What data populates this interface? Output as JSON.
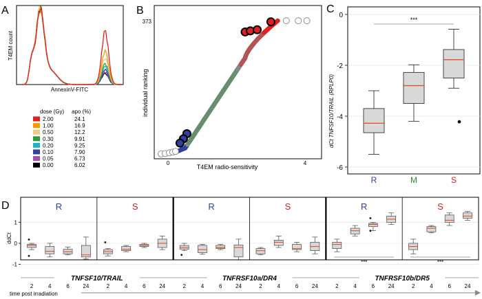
{
  "panel_labels": {
    "a": "A",
    "b": "B",
    "c": "C",
    "d": "D"
  },
  "colors": {
    "red": "#e02020",
    "orange": "#f59a00",
    "tan": "#f0c888",
    "green": "#2a9a3a",
    "cyan": "#20b4c0",
    "blue": "#3040a0",
    "purple": "#a050b0",
    "black": "#000000",
    "R": "#2e3e9a",
    "M": "#2a8a2a",
    "S": "#d42020",
    "median": "#e0502a",
    "box": "#d9d9d9",
    "grey": "#999999"
  },
  "chart_data": [
    {
      "id": "A",
      "type": "line",
      "title": "",
      "xlabel": "AnnexinV-FITC",
      "ylabel": "T4EM count",
      "legend": {
        "headers": [
          "dose (Gy)",
          "apo (%)"
        ],
        "rows": [
          {
            "dose": "2.00",
            "apo": "24.1",
            "color": "#e02020"
          },
          {
            "dose": "1.00",
            "apo": "16.9",
            "color": "#f59a00"
          },
          {
            "dose": "0.50",
            "apo": "12.2",
            "color": "#f0c888"
          },
          {
            "dose": "0.30",
            "apo": "9.91",
            "color": "#2a9a3a"
          },
          {
            "dose": "0.20",
            "apo": "9.25",
            "color": "#20b4c0"
          },
          {
            "dose": "0.10",
            "apo": "7.90",
            "color": "#3040a0"
          },
          {
            "dose": "0.05",
            "apo": "6.73",
            "color": "#a050b0"
          },
          {
            "dose": "0.00",
            "apo": "6.02",
            "color": "#000000"
          }
        ]
      },
      "second_peak_height": [
        0.72,
        0.45,
        0.35,
        0.28,
        0.24,
        0.2,
        0.17,
        0.15
      ]
    },
    {
      "id": "B",
      "type": "scatter",
      "xlabel": "T4EM radio-sensitivity",
      "ylabel": "individual ranking",
      "xticks": [
        "0",
        "4"
      ],
      "yticks": [
        "373"
      ],
      "xlim": [
        -0.3,
        4.5
      ],
      "ylim": [
        0,
        400
      ]
    },
    {
      "id": "C",
      "type": "box",
      "ylabel": "dCt TNFSF10/TRAIL (RPLP0)",
      "categories": [
        "R",
        "M",
        "S"
      ],
      "yticks": [
        "0",
        "-2",
        "-4",
        "-6"
      ],
      "ylim": [
        -6.3,
        0.3
      ],
      "boxes": [
        {
          "min": -5.5,
          "q1": -4.65,
          "median": -4.28,
          "q3": -3.7,
          "max": -3.0,
          "outliers": []
        },
        {
          "min": -4.2,
          "q1": -3.5,
          "median": -2.8,
          "q3": -2.28,
          "max": -1.98,
          "outliers": []
        },
        {
          "min": -2.9,
          "q1": -2.5,
          "median": -1.78,
          "q3": -1.38,
          "max": -0.58,
          "outliers": [
            -4.22
          ]
        }
      ],
      "significance": "***"
    },
    {
      "id": "D",
      "type": "box",
      "ylabel": "ddCt",
      "yticks": [
        "1",
        "0",
        "-1"
      ],
      "ylim": [
        -1.4,
        1.85
      ],
      "xticks": [
        "2",
        "4",
        "6",
        "24"
      ],
      "xlabel": "time post irradiation",
      "groups": [
        {
          "gene": "TNFSF10/TRAIL",
          "panels": [
            {
              "label": "R",
              "boxes": [
                {
                  "min": -0.3,
                  "q1": -0.2,
                  "median": -0.1,
                  "q3": -0.05,
                  "max": 0.0,
                  "outliers": [
                    0.18,
                    -0.6
                  ]
                },
                {
                  "min": -0.65,
                  "q1": -0.5,
                  "median": -0.38,
                  "q3": -0.15,
                  "max": -0.0,
                  "outliers": []
                },
                {
                  "min": -0.55,
                  "q1": -0.5,
                  "median": -0.4,
                  "q3": -0.28,
                  "max": -0.18,
                  "outliers": []
                },
                {
                  "min": -0.75,
                  "q1": -0.65,
                  "median": -0.55,
                  "q3": -0.1,
                  "max": 0.3,
                  "outliers": []
                }
              ]
            },
            {
              "label": "S",
              "boxes": [
                {
                  "min": -0.6,
                  "q1": -0.5,
                  "median": -0.4,
                  "q3": -0.3,
                  "max": -0.25,
                  "outliers": [
                    0.05
                  ]
                },
                {
                  "min": -0.4,
                  "q1": -0.35,
                  "median": -0.28,
                  "q3": -0.15,
                  "max": -0.1,
                  "outliers": []
                },
                {
                  "min": -0.2,
                  "q1": -0.15,
                  "median": -0.1,
                  "q3": -0.05,
                  "max": 0.0,
                  "outliers": []
                },
                {
                  "min": -0.3,
                  "q1": -0.2,
                  "median": 0.0,
                  "q3": 0.2,
                  "max": 0.35,
                  "outliers": []
                }
              ]
            }
          ]
        },
        {
          "gene": "TNFRSF10a/DR4",
          "panels": [
            {
              "label": "R",
              "boxes": [
                {
                  "min": -0.35,
                  "q1": -0.28,
                  "median": -0.2,
                  "q3": -0.1,
                  "max": 0.0,
                  "outliers": [
                    -0.55
                  ]
                },
                {
                  "min": -0.52,
                  "q1": -0.45,
                  "median": -0.3,
                  "q3": -0.1,
                  "max": -0.05,
                  "outliers": []
                },
                {
                  "min": -0.3,
                  "q1": -0.25,
                  "median": -0.2,
                  "q3": -0.1,
                  "max": -0.05,
                  "outliers": []
                },
                {
                  "min": -0.8,
                  "q1": -0.65,
                  "median": -0.2,
                  "q3": -0.08,
                  "max": 0.2,
                  "outliers": []
                }
              ]
            },
            {
              "label": "S",
              "boxes": [
                {
                  "min": -0.55,
                  "q1": -0.5,
                  "median": -0.35,
                  "q3": -0.25,
                  "max": -0.2,
                  "outliers": []
                },
                {
                  "min": -0.2,
                  "q1": -0.1,
                  "median": 0.05,
                  "q3": 0.15,
                  "max": 0.35,
                  "outliers": []
                },
                {
                  "min": -0.4,
                  "q1": -0.3,
                  "median": -0.25,
                  "q3": -0.05,
                  "max": 0.05,
                  "outliers": []
                },
                {
                  "min": -0.5,
                  "q1": -0.35,
                  "median": -0.15,
                  "q3": 0.05,
                  "max": 0.3,
                  "outliers": []
                }
              ]
            }
          ]
        },
        {
          "gene": "TNFRSF10b/DR5",
          "panels": [
            {
              "label": "R",
              "boxes": [
                {
                  "min": -0.4,
                  "q1": -0.25,
                  "median": -0.05,
                  "q3": 0.05,
                  "max": 0.2,
                  "outliers": []
                },
                {
                  "min": 0.35,
                  "q1": 0.45,
                  "median": 0.6,
                  "q3": 0.72,
                  "max": 0.85,
                  "outliers": []
                },
                {
                  "min": 0.6,
                  "q1": 0.8,
                  "median": 0.9,
                  "q3": 0.95,
                  "max": 1.0,
                  "outliers": [
                    1.2,
                    0.6
                  ]
                },
                {
                  "min": 0.9,
                  "q1": 1.0,
                  "median": 1.15,
                  "q3": 1.3,
                  "max": 1.45,
                  "outliers": []
                }
              ]
            },
            {
              "label": "S",
              "boxes": [
                {
                  "min": -0.5,
                  "q1": -0.3,
                  "median": -0.15,
                  "q3": 0.0,
                  "max": 0.2,
                  "outliers": []
                },
                {
                  "min": 0.5,
                  "q1": 0.55,
                  "median": 0.72,
                  "q3": 0.8,
                  "max": 0.85,
                  "outliers": []
                },
                {
                  "min": 0.85,
                  "q1": 1.0,
                  "median": 1.1,
                  "q3": 1.35,
                  "max": 1.45,
                  "outliers": []
                },
                {
                  "min": 1.1,
                  "q1": 1.2,
                  "median": 1.3,
                  "q3": 1.45,
                  "max": 1.52,
                  "outliers": []
                }
              ]
            }
          ],
          "significance": "***"
        }
      ]
    }
  ]
}
